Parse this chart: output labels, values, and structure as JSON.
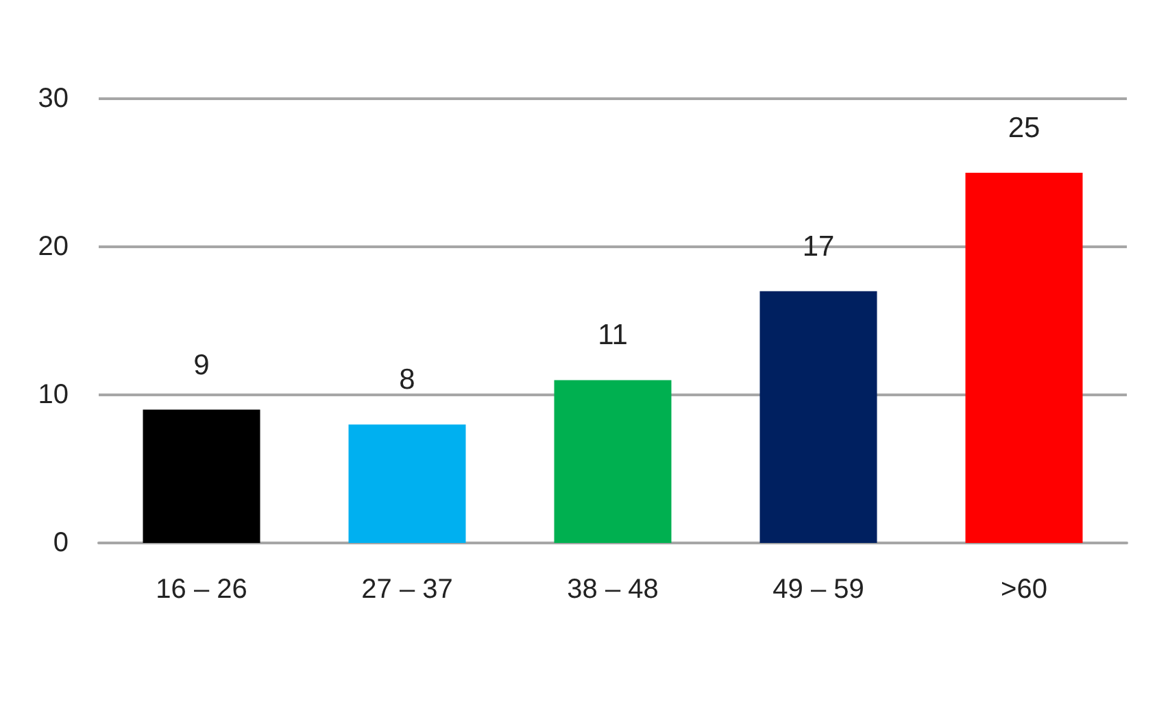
{
  "chart_data": {
    "type": "bar",
    "categories": [
      "16 – 26",
      "27 – 37",
      "38 – 48",
      "49 – 59",
      ">60"
    ],
    "values": [
      9,
      8,
      11,
      17,
      25
    ],
    "colors": [
      "#000000",
      "#00b0f0",
      "#00b050",
      "#002060",
      "#ff0000"
    ],
    "ylim": [
      0,
      30
    ],
    "yticks": [
      0,
      10,
      20,
      30
    ],
    "grid": "y",
    "data_labels": true
  }
}
